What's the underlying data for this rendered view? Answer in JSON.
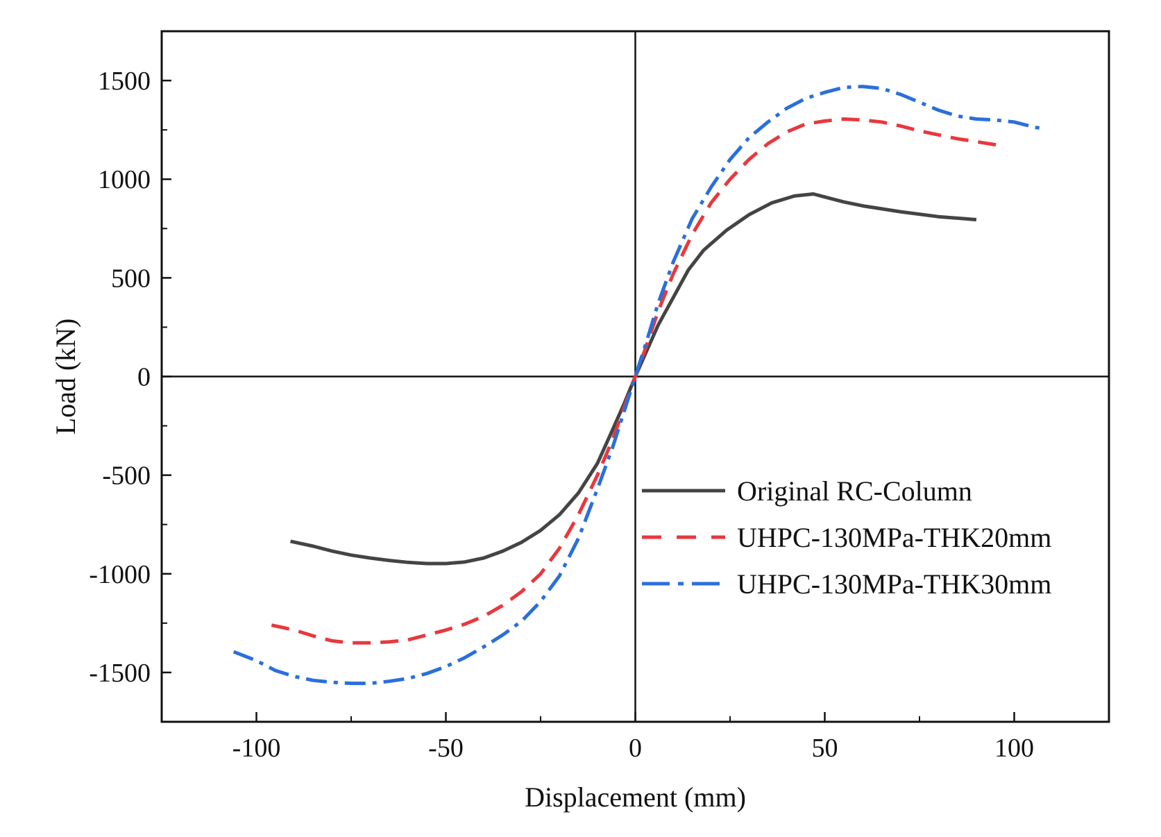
{
  "chart_data": {
    "type": "line",
    "title": "",
    "xlabel": "Displacement (mm)",
    "ylabel": "Load (kN)",
    "xlim": [
      -125,
      125
    ],
    "ylim": [
      -1750,
      1750
    ],
    "xticks": [
      -100,
      -50,
      0,
      50,
      100
    ],
    "xtick_labels": [
      "-100",
      "-50",
      "0",
      "50",
      "100"
    ],
    "yticks": [
      -1500,
      -1000,
      -500,
      0,
      500,
      1000,
      1500
    ],
    "ytick_labels": [
      "-1500",
      "-1000",
      "-500",
      "0",
      "500",
      "1000",
      "1500"
    ],
    "grid": false,
    "zero_lines": true,
    "legend_position": "lower-right",
    "series": [
      {
        "name": "Original RC-Column",
        "color": "#444444",
        "dash": "solid",
        "points": [
          [
            -91,
            -835
          ],
          [
            -85,
            -860
          ],
          [
            -80,
            -885
          ],
          [
            -75,
            -905
          ],
          [
            -70,
            -920
          ],
          [
            -65,
            -932
          ],
          [
            -60,
            -942
          ],
          [
            -55,
            -948
          ],
          [
            -50,
            -948
          ],
          [
            -45,
            -940
          ],
          [
            -40,
            -920
          ],
          [
            -35,
            -885
          ],
          [
            -30,
            -840
          ],
          [
            -25,
            -780
          ],
          [
            -20,
            -700
          ],
          [
            -15,
            -590
          ],
          [
            -10,
            -440
          ],
          [
            -6,
            -270
          ],
          [
            -3,
            -140
          ],
          [
            0,
            0
          ],
          [
            3,
            130
          ],
          [
            6,
            260
          ],
          [
            10,
            400
          ],
          [
            14,
            540
          ],
          [
            18,
            640
          ],
          [
            24,
            740
          ],
          [
            30,
            820
          ],
          [
            36,
            880
          ],
          [
            42,
            915
          ],
          [
            47,
            925
          ],
          [
            50,
            910
          ],
          [
            55,
            885
          ],
          [
            60,
            865
          ],
          [
            70,
            835
          ],
          [
            80,
            810
          ],
          [
            90,
            795
          ]
        ]
      },
      {
        "name": "UHPC-130MPa-THK20mm",
        "color": "#e8383d",
        "dash": "dashed",
        "points": [
          [
            -96,
            -1260
          ],
          [
            -90,
            -1285
          ],
          [
            -85,
            -1315
          ],
          [
            -80,
            -1340
          ],
          [
            -75,
            -1350
          ],
          [
            -70,
            -1350
          ],
          [
            -65,
            -1345
          ],
          [
            -60,
            -1335
          ],
          [
            -55,
            -1310
          ],
          [
            -50,
            -1285
          ],
          [
            -45,
            -1255
          ],
          [
            -40,
            -1215
          ],
          [
            -35,
            -1160
          ],
          [
            -30,
            -1090
          ],
          [
            -25,
            -1000
          ],
          [
            -20,
            -870
          ],
          [
            -15,
            -700
          ],
          [
            -10,
            -500
          ],
          [
            -6,
            -320
          ],
          [
            -3,
            -160
          ],
          [
            0,
            0
          ],
          [
            3,
            160
          ],
          [
            6,
            330
          ],
          [
            10,
            520
          ],
          [
            15,
            720
          ],
          [
            20,
            880
          ],
          [
            25,
            1000
          ],
          [
            30,
            1100
          ],
          [
            35,
            1180
          ],
          [
            40,
            1240
          ],
          [
            45,
            1280
          ],
          [
            50,
            1295
          ],
          [
            55,
            1305
          ],
          [
            60,
            1300
          ],
          [
            65,
            1290
          ],
          [
            70,
            1270
          ],
          [
            75,
            1245
          ],
          [
            80,
            1225
          ],
          [
            85,
            1205
          ],
          [
            90,
            1190
          ],
          [
            95,
            1175
          ],
          [
            97,
            1165
          ]
        ]
      },
      {
        "name": "UHPC-130MPa-THK30mm",
        "color": "#2a6fdb",
        "dash": "dashdot",
        "points": [
          [
            -106,
            -1395
          ],
          [
            -100,
            -1440
          ],
          [
            -95,
            -1490
          ],
          [
            -90,
            -1520
          ],
          [
            -85,
            -1540
          ],
          [
            -80,
            -1550
          ],
          [
            -75,
            -1555
          ],
          [
            -70,
            -1555
          ],
          [
            -65,
            -1545
          ],
          [
            -60,
            -1530
          ],
          [
            -55,
            -1505
          ],
          [
            -50,
            -1470
          ],
          [
            -45,
            -1425
          ],
          [
            -40,
            -1370
          ],
          [
            -35,
            -1310
          ],
          [
            -30,
            -1240
          ],
          [
            -25,
            -1140
          ],
          [
            -20,
            -1010
          ],
          [
            -15,
            -820
          ],
          [
            -10,
            -570
          ],
          [
            -6,
            -360
          ],
          [
            -3,
            -180
          ],
          [
            0,
            0
          ],
          [
            3,
            180
          ],
          [
            6,
            370
          ],
          [
            10,
            580
          ],
          [
            15,
            800
          ],
          [
            20,
            960
          ],
          [
            25,
            1100
          ],
          [
            30,
            1210
          ],
          [
            35,
            1290
          ],
          [
            40,
            1360
          ],
          [
            45,
            1410
          ],
          [
            50,
            1440
          ],
          [
            55,
            1465
          ],
          [
            60,
            1470
          ],
          [
            65,
            1460
          ],
          [
            70,
            1430
          ],
          [
            75,
            1390
          ],
          [
            80,
            1350
          ],
          [
            85,
            1320
          ],
          [
            90,
            1305
          ],
          [
            95,
            1300
          ],
          [
            100,
            1290
          ],
          [
            105,
            1265
          ],
          [
            108,
            1255
          ]
        ]
      }
    ]
  }
}
